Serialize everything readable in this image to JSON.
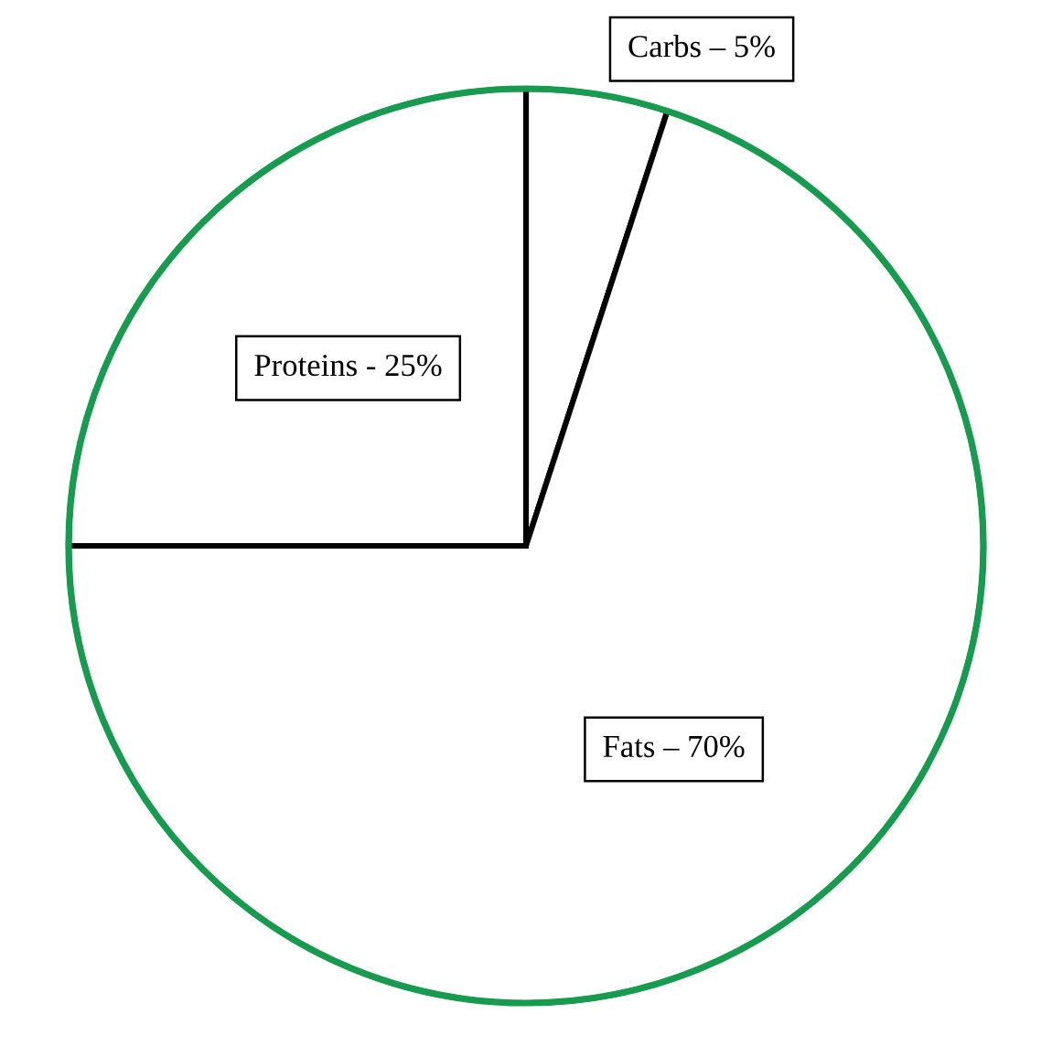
{
  "chart_data": {
    "type": "pie",
    "categories": [
      "Carbs – 5%",
      "Fats – 70%",
      "Proteins - 25%"
    ],
    "values": [
      5,
      70,
      25
    ],
    "colors": [
      "#ffffff",
      "#ffffff",
      "#ffffff"
    ]
  }
}
